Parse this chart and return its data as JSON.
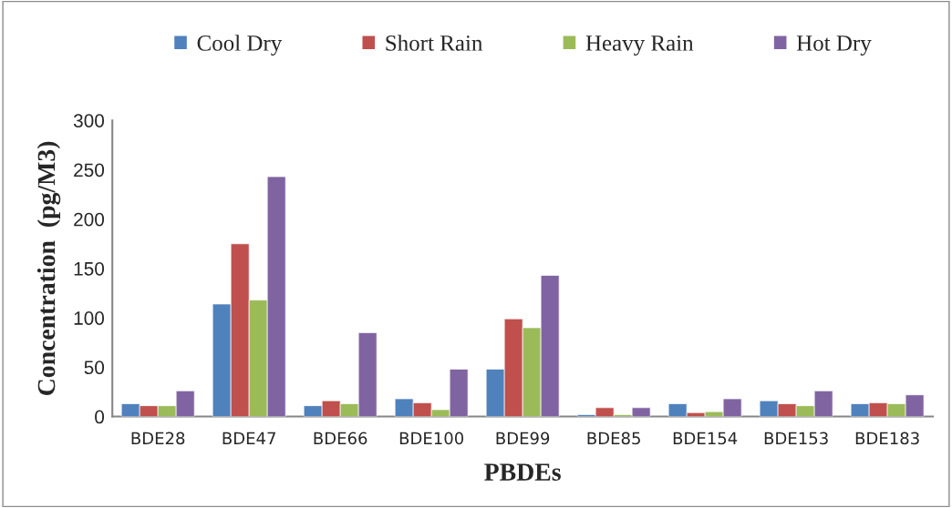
{
  "chart_data": {
    "type": "bar",
    "categories": [
      "BDE28",
      "BDE47",
      "BDE66",
      "BDE100",
      "BDE99",
      "BDE85",
      "BDE154",
      "BDE153",
      "BDE183"
    ],
    "series": [
      {
        "name": "Cool Dry",
        "color": "#4f81bd",
        "values": [
          13,
          114,
          11,
          18,
          48,
          2,
          13,
          16,
          13
        ]
      },
      {
        "name": "Short Rain",
        "color": "#c0504d",
        "values": [
          11,
          175,
          16,
          14,
          99,
          9,
          4,
          13,
          14
        ]
      },
      {
        "name": "Heavy Rain",
        "color": "#9bbb59",
        "values": [
          11,
          118,
          13,
          7,
          90,
          2,
          5,
          11,
          13
        ]
      },
      {
        "name": "Hot Dry",
        "color": "#8064a2",
        "values": [
          26,
          243,
          85,
          48,
          143,
          9,
          18,
          26,
          22
        ]
      }
    ],
    "xlabel": "PBDEs",
    "ylabel": "Concentration  (pg/M3)",
    "ylim": [
      0,
      300
    ],
    "yticks": [
      0,
      50,
      100,
      150,
      200,
      250,
      300
    ],
    "grid": false,
    "legend": "top"
  }
}
